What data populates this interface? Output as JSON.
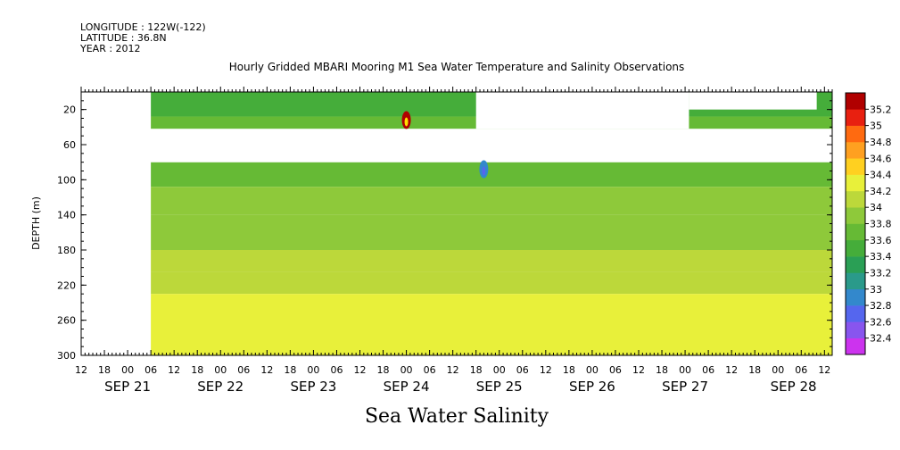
{
  "header": {
    "longitude": "LONGITUDE : 122W(-122)",
    "latitude": "LATITUDE : 36.8N",
    "year": "YEAR : 2012"
  },
  "chart_data": {
    "type": "heatmap",
    "title": "Hourly Gridded MBARI Mooring M1 Sea Water Temperature and Salinity Observations",
    "xlabel": "Sea Water Salinity",
    "ylabel": "DEPTH (m)",
    "ylim": [
      300,
      0
    ],
    "yticks": [
      20,
      60,
      100,
      140,
      180,
      220,
      260,
      300
    ],
    "x_start": "SEP 20 12:00",
    "x_end": "SEP 28 14:00",
    "hour_ticks": [
      "12",
      "18",
      "00",
      "06",
      "12",
      "18",
      "00",
      "06",
      "12",
      "18",
      "00",
      "06",
      "12",
      "18",
      "00",
      "06",
      "12",
      "18",
      "00",
      "06",
      "12",
      "18",
      "00",
      "06",
      "12",
      "18",
      "00",
      "06",
      "12",
      "18",
      "00",
      "06",
      "12"
    ],
    "date_labels": [
      "SEP 21",
      "SEP 22",
      "SEP 23",
      "SEP 24",
      "SEP 25",
      "SEP 26",
      "SEP 27",
      "SEP 28"
    ],
    "colorbar": {
      "levels": [
        "32.4",
        "32.6",
        "32.8",
        "33",
        "33.2",
        "33.4",
        "33.6",
        "33.8",
        "34",
        "34.2",
        "34.4",
        "34.6",
        "34.8",
        "35",
        "35.2"
      ],
      "colors": [
        "#cc33ee",
        "#8855ee",
        "#5566ee",
        "#3388cc",
        "#2a9a8a",
        "#2a9f55",
        "#45ad3a",
        "#66ba35",
        "#8ec93a",
        "#bcd83a",
        "#e8f03a",
        "#ffd020",
        "#ffa020",
        "#ff6a10",
        "#e82010",
        "#b00000"
      ]
    },
    "depth_bands": [
      {
        "depth_top": 0,
        "depth_bottom": 28,
        "salinity": 33.5
      },
      {
        "depth_top": 28,
        "depth_bottom": 42,
        "salinity": 33.6
      },
      {
        "depth_top": 80,
        "depth_bottom": 108,
        "salinity": 33.6
      },
      {
        "depth_top": 108,
        "depth_bottom": 140,
        "salinity": 33.8
      },
      {
        "depth_top": 140,
        "depth_bottom": 180,
        "salinity": 33.9
      },
      {
        "depth_top": 180,
        "depth_bottom": 205,
        "salinity": 34.0
      },
      {
        "depth_top": 205,
        "depth_bottom": 230,
        "salinity": 34.1
      },
      {
        "depth_top": 230,
        "depth_bottom": 300,
        "salinity": 34.2
      }
    ],
    "missing_regions": [
      {
        "hour_start": 18,
        "hour_end": 194,
        "depth_top": 42,
        "depth_bottom": 80
      },
      {
        "hour_start": 102,
        "hour_end": 157,
        "depth_top": 0,
        "depth_bottom": 42
      },
      {
        "hour_start": 157,
        "hour_end": 190,
        "depth_top": 0,
        "depth_bottom": 20
      }
    ],
    "events": [
      {
        "time": "SEP 24 00:00",
        "depth": 32,
        "salinity": 35.2
      },
      {
        "time": "SEP 24 20:00",
        "depth": 88,
        "salinity": 32.8
      }
    ]
  }
}
